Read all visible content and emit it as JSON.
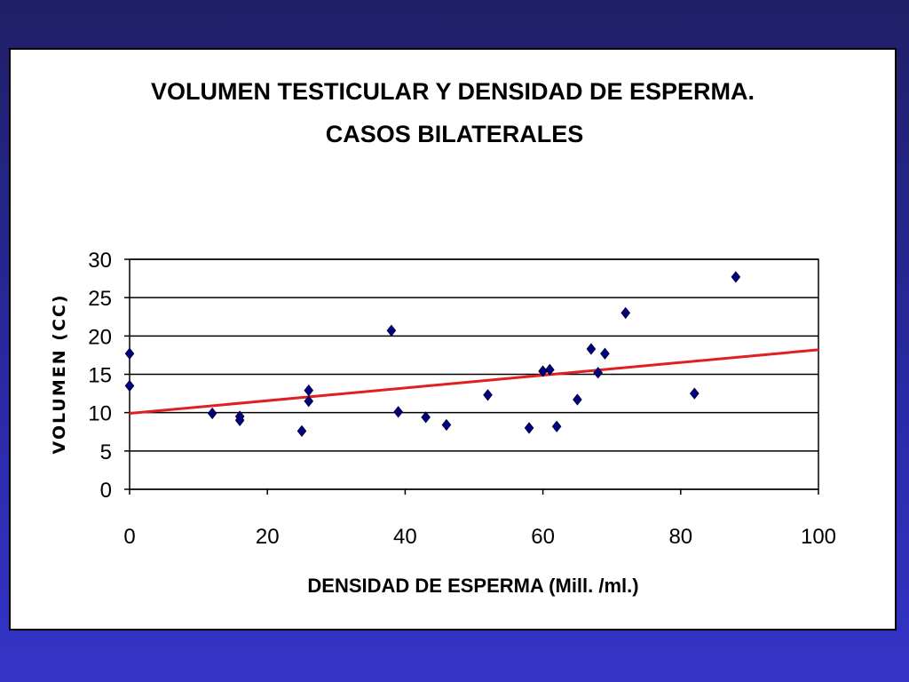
{
  "chart_data": {
    "type": "scatter",
    "title_lines": [
      "VOLUMEN TESTICULAR Y DENSIDAD DE ESPERMA.",
      "CASOS BILATERALES"
    ],
    "xlabel": "DENSIDAD DE ESPERMA (Mill. /ml.)",
    "ylabel": "VOLUMEN (CC)",
    "xlim": [
      0,
      100
    ],
    "ylim": [
      0,
      30
    ],
    "xticks": [
      "0",
      "20",
      "40",
      "60",
      "80",
      "100"
    ],
    "yticks": [
      "0",
      "5",
      "10",
      "15",
      "20",
      "25",
      "30"
    ],
    "grid": "horizontal",
    "legend": "none",
    "point_color": "#000080",
    "trend_color": "#e02020",
    "points": [
      {
        "x": 0,
        "y": 17.7
      },
      {
        "x": 0,
        "y": 13.5
      },
      {
        "x": 12,
        "y": 9.9
      },
      {
        "x": 16,
        "y": 9.5
      },
      {
        "x": 16,
        "y": 9.0
      },
      {
        "x": 25,
        "y": 7.6
      },
      {
        "x": 26,
        "y": 12.9
      },
      {
        "x": 26,
        "y": 11.5
      },
      {
        "x": 38,
        "y": 20.7
      },
      {
        "x": 39,
        "y": 10.1
      },
      {
        "x": 43,
        "y": 9.4
      },
      {
        "x": 46,
        "y": 8.4
      },
      {
        "x": 52,
        "y": 12.3
      },
      {
        "x": 58,
        "y": 8.0
      },
      {
        "x": 60,
        "y": 15.4
      },
      {
        "x": 61,
        "y": 15.6
      },
      {
        "x": 62,
        "y": 8.2
      },
      {
        "x": 65,
        "y": 11.7
      },
      {
        "x": 67,
        "y": 18.3
      },
      {
        "x": 68,
        "y": 15.2
      },
      {
        "x": 69,
        "y": 17.7
      },
      {
        "x": 72,
        "y": 23.0
      },
      {
        "x": 82,
        "y": 12.5
      },
      {
        "x": 88,
        "y": 27.7
      }
    ],
    "trendline": {
      "x": [
        0,
        100
      ],
      "y": [
        9.9,
        18.2
      ]
    }
  }
}
